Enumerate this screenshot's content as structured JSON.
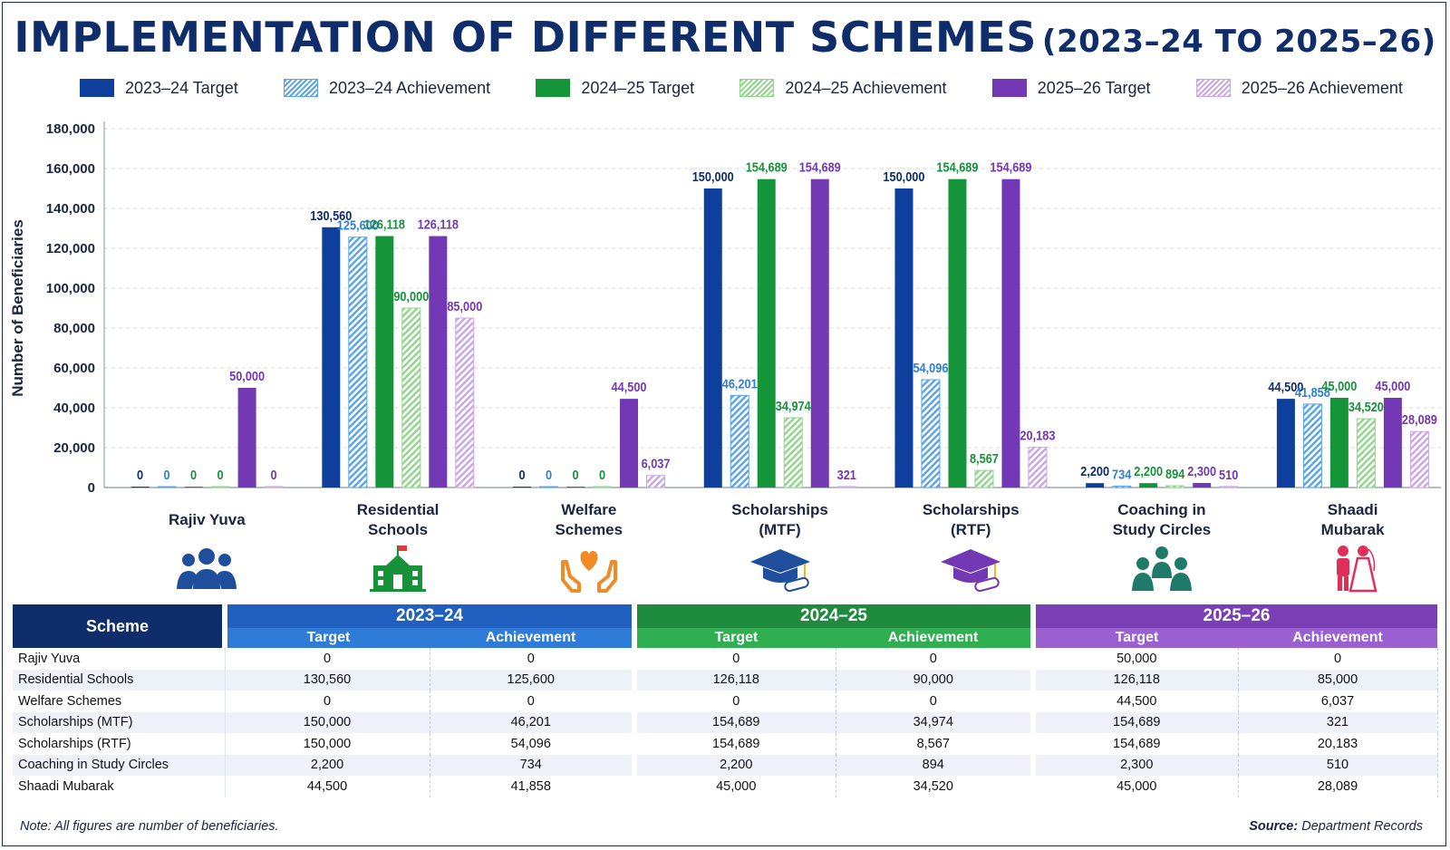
{
  "title": {
    "main": "IMPLEMENTATION OF DIFFERENT SCHEMES",
    "sub": "(2023–24 TO 2025–26)"
  },
  "colors": {
    "t2023": "#0f3f9c",
    "a2023": "#5aa3ea",
    "t2024": "#15953a",
    "a2024": "#8fd68a",
    "t2025": "#7338b3",
    "a2025": "#c9a6e6",
    "title": "#0f2d6b"
  },
  "legend": [
    {
      "label": "2023–24 Target",
      "color": "#0f3f9c",
      "hatch": false
    },
    {
      "label": "2023–24 Achievement",
      "color": "#5aa3ea",
      "hatch": true
    },
    {
      "label": "2024–25 Target",
      "color": "#15953a",
      "hatch": false
    },
    {
      "label": "2024–25 Achievement",
      "color": "#8fd68a",
      "hatch": true
    },
    {
      "label": "2025–26 Target",
      "color": "#7338b3",
      "hatch": false
    },
    {
      "label": "2025–26 Achievement",
      "color": "#c9a6e6",
      "hatch": true
    }
  ],
  "chart_data": {
    "type": "bar",
    "ylabel": "Number of Beneficiaries",
    "ylim": [
      0,
      180000
    ],
    "yticks": [
      "0",
      "20,000",
      "40,000",
      "60,000",
      "80,000",
      "100,000",
      "120,000",
      "140,000",
      "160,000",
      "180,000"
    ],
    "grid": true,
    "legend_position": "top",
    "categories": [
      "Rajiv Yuva",
      "Residential\nSchools",
      "Welfare\nSchemes",
      "Scholarships\n(MTF)",
      "Scholarships\n(RTF)",
      "Coaching in\nStudy Circles",
      "Shaadi\nMubarak"
    ],
    "series": [
      {
        "name": "2023–24 Target",
        "values": [
          0,
          130560,
          0,
          150000,
          150000,
          2200,
          44500
        ],
        "labels": [
          "0",
          "130,560",
          "0",
          "150,000",
          "150,000",
          "2,200",
          "44,500"
        ]
      },
      {
        "name": "2023–24 Achievement",
        "values": [
          0,
          125600,
          0,
          46201,
          54096,
          734,
          41858
        ],
        "labels": [
          "0",
          "125,600",
          "0",
          "46,201",
          "54,096",
          "734",
          "41,858"
        ]
      },
      {
        "name": "2024–25 Target",
        "values": [
          0,
          126118,
          0,
          154689,
          154689,
          2200,
          45000
        ],
        "labels": [
          "0",
          "126,118",
          "0",
          "154,689",
          "154,689",
          "2,200",
          "45,000"
        ]
      },
      {
        "name": "2024–25 Achievement",
        "values": [
          0,
          90000,
          0,
          34974,
          8567,
          894,
          34520
        ],
        "labels": [
          "0",
          "90,000",
          "0",
          "34,974",
          "8,567",
          "894",
          "34,520"
        ]
      },
      {
        "name": "2025–26 Target",
        "values": [
          50000,
          126118,
          44500,
          154689,
          154689,
          2300,
          45000
        ],
        "labels": [
          "50,000",
          "126,118",
          "44,500",
          "154,689",
          "154,689",
          "2,300",
          "45,000"
        ]
      },
      {
        "name": "2025–26 Achievement",
        "values": [
          0,
          85000,
          6037,
          321,
          20183,
          510,
          28089
        ],
        "labels": [
          "0",
          "85,000",
          "6,037",
          "321",
          "20,183",
          "510",
          "28,089"
        ]
      }
    ]
  },
  "icons": [
    "people-group-icon",
    "school-building-icon",
    "heart-hands-icon",
    "graduation-cap-icon",
    "graduation-cap-icon",
    "teacher-students-icon",
    "wedding-couple-icon"
  ],
  "table": {
    "scheme_header": "Scheme",
    "years": [
      "2023–24",
      "2024–25",
      "2025–26"
    ],
    "target_label": "Target",
    "achievement_label": "Achievement",
    "rows": [
      [
        "Rajiv Yuva",
        "0",
        "0",
        "0",
        "0",
        "50,000",
        "0"
      ],
      [
        "Residential Schools",
        "130,560",
        "125,600",
        "126,118",
        "90,000",
        "126,118",
        "85,000"
      ],
      [
        "Welfare Schemes",
        "0",
        "0",
        "0",
        "0",
        "44,500",
        "6,037"
      ],
      [
        "Scholarships (MTF)",
        "150,000",
        "46,201",
        "154,689",
        "34,974",
        "154,689",
        "321"
      ],
      [
        "Scholarships (RTF)",
        "150,000",
        "54,096",
        "154,689",
        "8,567",
        "154,689",
        "20,183"
      ],
      [
        "Coaching in Study Circles",
        "2,200",
        "734",
        "2,200",
        "894",
        "2,300",
        "510"
      ],
      [
        "Shaadi Mubarak",
        "44,500",
        "41,858",
        "45,000",
        "34,520",
        "45,000",
        "28,089"
      ]
    ]
  },
  "footer": {
    "note": "Note: All figures are number of beneficiaries.",
    "source_label": "Source:",
    "source_text": "Department Records"
  }
}
